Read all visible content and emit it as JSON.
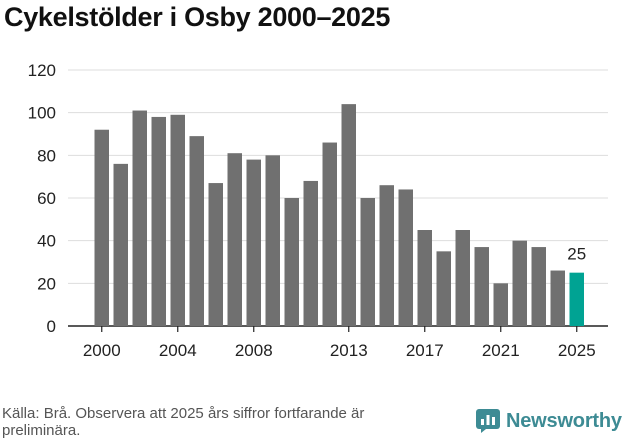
{
  "page": {
    "title": "Cykelstölder i Osby 2000–2025",
    "source": "Källa: Brå. Observera att 2025 års siffror fortfarande är preliminära.",
    "brand": "Newsworthy"
  },
  "colors": {
    "bar": "#707070",
    "highlight": "#00a393",
    "grid": "#dddddd",
    "axis": "#222222",
    "brand": "#3d8b94"
  },
  "icons": {
    "brand_logo": "newsworthy-logo-icon"
  },
  "chart_data": {
    "type": "bar",
    "title": "Cykelstölder i Osby 2000–2025",
    "xlabel": "",
    "ylabel": "",
    "ylim": [
      0,
      120
    ],
    "yticks": [
      0,
      20,
      40,
      60,
      80,
      100,
      120
    ],
    "xticks": [
      "2000",
      "2004",
      "2008",
      "2013",
      "2017",
      "2021",
      "2025"
    ],
    "categories": [
      "2000",
      "2001",
      "2002",
      "2003",
      "2004",
      "2005",
      "2006",
      "2007",
      "2008",
      "2009",
      "2010",
      "2011",
      "2012",
      "2013",
      "2014",
      "2015",
      "2016",
      "2017",
      "2018",
      "2019",
      "2020",
      "2021",
      "2022",
      "2023",
      "2024",
      "2025"
    ],
    "values": [
      92,
      76,
      101,
      98,
      99,
      89,
      67,
      81,
      78,
      80,
      60,
      68,
      86,
      104,
      60,
      66,
      64,
      45,
      35,
      45,
      37,
      20,
      40,
      37,
      26,
      25
    ],
    "highlight_category": "2025",
    "annotations": [
      {
        "category": "2025",
        "label": "25"
      }
    ],
    "grid": true
  }
}
